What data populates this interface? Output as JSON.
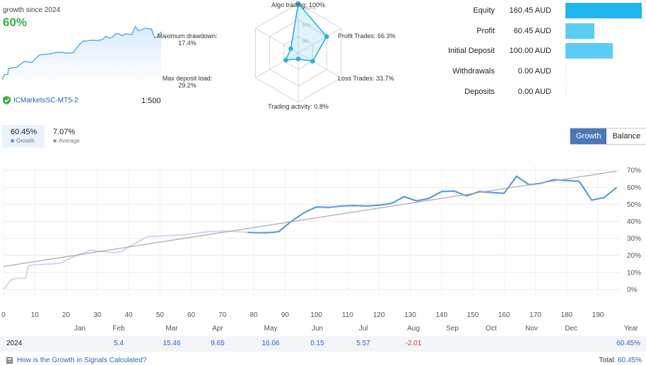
{
  "summary": {
    "since_label": "growth since 2024",
    "growth_pct": "60%",
    "broker": "ICMarketsSC-MT5-2",
    "leverage": "1:500",
    "accent_green": "#3fae49",
    "link_blue": "#2a62c9"
  },
  "radar": {
    "rings": [
      "100+%",
      "50%",
      "0%"
    ],
    "axes": [
      {
        "label": "Algo trading: 100%",
        "value": 1.0
      },
      {
        "label": "Profit Trades: 66.3%",
        "value": 0.663
      },
      {
        "label": "Loss Trades: 33.7%",
        "value": 0.337
      },
      {
        "label": "Trading activity: 0.8%",
        "value": 0.008
      },
      {
        "label": "Max deposit load:\n29.2%",
        "value": 0.292
      },
      {
        "label": "Maximum drawdown:\n17.4%",
        "value": 0.174
      }
    ]
  },
  "balance_bars": {
    "max": 160.45,
    "color": "#5bcdf5",
    "items": [
      {
        "label": "Equity",
        "value_text": "160.45 AUD",
        "value": 160.45,
        "color": "#1fb6ef"
      },
      {
        "label": "Profit",
        "value_text": "60.45 AUD",
        "value": 60.45,
        "color": "#5bcdf5"
      },
      {
        "label": "Initial Deposit",
        "value_text": "100.00 AUD",
        "value": 100.0,
        "color": "#5bcdf5"
      },
      {
        "label": "Withdrawals",
        "value_text": "0.00 AUD",
        "value": 0,
        "color": "#5bcdf5"
      },
      {
        "label": "Deposits",
        "value_text": "0.00 AUD",
        "value": 0,
        "color": "#5bcdf5"
      }
    ]
  },
  "stats": {
    "growth_value": "60.45%",
    "growth_label": "Growth",
    "average_value": "7.07%",
    "average_label": "Average"
  },
  "toggle": {
    "growth": "Growth",
    "balance": "Balance"
  },
  "chart_data": {
    "type": "line",
    "x_ticks": [
      "0",
      "10",
      "20",
      "30",
      "40",
      "50",
      "60",
      "70",
      "80",
      "90",
      "100",
      "110",
      "120",
      "130",
      "140",
      "150",
      "160",
      "170",
      "180",
      "190"
    ],
    "y_ticks": [
      "0%",
      "10%",
      "20%",
      "30%",
      "40%",
      "50%",
      "60%",
      "70%"
    ],
    "xlim": [
      0,
      197
    ],
    "ylim": [
      -5,
      73
    ],
    "grid": true,
    "months": [
      "Jan",
      "Feb",
      "Mar",
      "Apr",
      "May",
      "Jun",
      "Jul",
      "Aug",
      "Sep",
      "Oct",
      "Nov",
      "Dec",
      "Year"
    ],
    "series": [
      {
        "style": "history",
        "color": "#d3daf0",
        "x": [
          0,
          1,
          2,
          3,
          4,
          5,
          6,
          7,
          8,
          9,
          10,
          12,
          15,
          18,
          20,
          22,
          25,
          28,
          30,
          33,
          36,
          38,
          40,
          43,
          46,
          49,
          52,
          55,
          58,
          62,
          66,
          70,
          74,
          78
        ],
        "y": [
          0,
          2,
          5,
          6,
          6.5,
          6.5,
          6.5,
          6.5,
          14,
          14.2,
          14.4,
          14.6,
          15,
          15.4,
          17,
          19,
          21,
          23,
          22.5,
          22,
          21.5,
          22.5,
          25,
          28,
          31,
          31.3,
          31.6,
          31.8,
          32.2,
          33,
          34,
          34.3,
          34.1,
          33.5
        ]
      },
      {
        "style": "recent",
        "color": "#5b9be2",
        "x": [
          78,
          82,
          86,
          88,
          92,
          96,
          100,
          104,
          108,
          112,
          116,
          120,
          124,
          128,
          132,
          136,
          140,
          144,
          148,
          152,
          156,
          160,
          164,
          168,
          172,
          176,
          180,
          184,
          188,
          192,
          196
        ],
        "y": [
          33.5,
          33.2,
          33.5,
          34,
          40,
          45,
          48.5,
          48.2,
          49,
          49.3,
          49,
          49.5,
          50.5,
          54.5,
          52,
          53.5,
          57.5,
          57.8,
          55,
          57.5,
          57,
          56.5,
          66.5,
          61.5,
          62.5,
          64.5,
          64,
          63.5,
          52.5,
          54,
          60
        ]
      },
      {
        "style": "trend",
        "color": "#aaaaaa",
        "x": [
          0,
          196
        ],
        "y": [
          13.5,
          69.5
        ]
      }
    ]
  },
  "year_table": {
    "year": "2024",
    "values": [
      "",
      "5.4",
      "15.46",
      "9.65",
      "16.06",
      "0.15",
      "5.57",
      "-2.01",
      "",
      "",
      "",
      "",
      ""
    ],
    "year_total": "60.45%",
    "positive_color": "#2a62c9",
    "negative_color": "#e23b3b"
  },
  "footer": {
    "question": "How is the Growth in Signals Calculated?",
    "total_label": "Total:",
    "total_value": "60.45%"
  }
}
